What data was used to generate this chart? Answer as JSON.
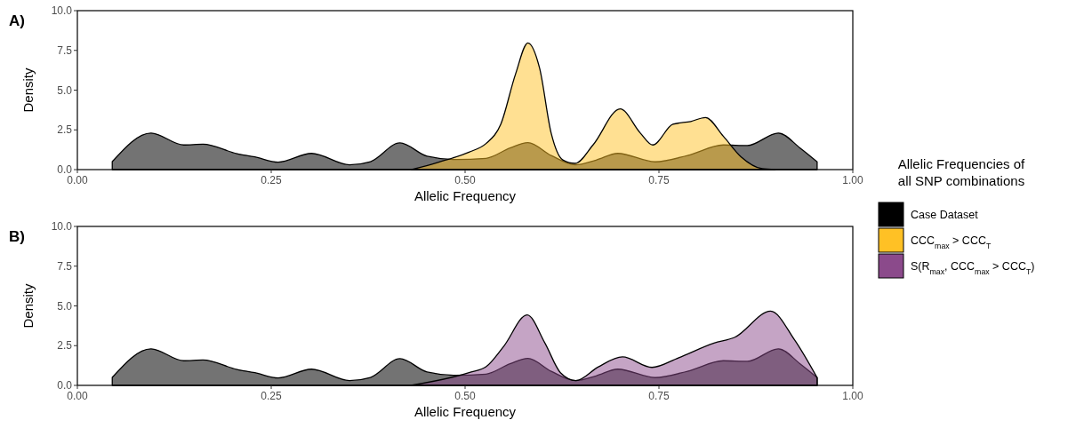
{
  "chart_data": [
    {
      "type": "area",
      "title": "A)",
      "xlabel": "Allelic Frequency",
      "ylabel": "Density",
      "legend_title": "Allelic Frequencies of all SNP combinations",
      "legend": "right",
      "xlim": [
        0,
        1
      ],
      "ylim": [
        0,
        10
      ],
      "xticks": [
        {
          "value": 0,
          "label": "0.00"
        },
        {
          "value": 0.25,
          "label": "0.25"
        },
        {
          "value": 0.5,
          "label": "0.50"
        },
        {
          "value": 0.75,
          "label": "0.75"
        },
        {
          "value": 1,
          "label": "1.00"
        }
      ],
      "yticks": [
        {
          "value": 0,
          "label": "0.0"
        },
        {
          "value": 2.5,
          "label": "2.5"
        },
        {
          "value": 5,
          "label": "5.0"
        },
        {
          "value": 7.5,
          "label": "7.5"
        },
        {
          "value": 10,
          "label": "10.0"
        }
      ],
      "series": [
        {
          "name": "Case Dataset",
          "color": "#000000",
          "x": [
            0.045,
            0.095,
            0.137,
            0.162,
            0.206,
            0.229,
            0.259,
            0.302,
            0.351,
            0.378,
            0.416,
            0.451,
            0.487,
            0.527,
            0.558,
            0.581,
            0.611,
            0.642,
            0.669,
            0.697,
            0.745,
            0.787,
            0.833,
            0.864,
            0.904,
            0.932,
            0.954
          ],
          "values": [
            0.5,
            2.3,
            1.55,
            1.6,
            1.0,
            0.8,
            0.47,
            1.02,
            0.3,
            0.5,
            1.68,
            0.84,
            0.63,
            0.71,
            1.36,
            1.7,
            0.89,
            0.3,
            0.6,
            1.02,
            0.49,
            0.89,
            1.55,
            1.51,
            2.3,
            1.36,
            0.49
          ]
        },
        {
          "name": "CCC$_{max}$ > CCC$_{T}$",
          "color": "#ffc125",
          "x": [
            0.431,
            0.466,
            0.505,
            0.527,
            0.546,
            0.565,
            0.581,
            0.596,
            0.611,
            0.626,
            0.642,
            0.665,
            0.7,
            0.726,
            0.742,
            0.768,
            0.791,
            0.81,
            0.833,
            0.856,
            0.883,
            0.9
          ],
          "values": [
            0,
            0.47,
            1.1,
            1.64,
            2.85,
            6.0,
            7.97,
            6.4,
            2.3,
            0.61,
            0.39,
            1.55,
            3.82,
            2.3,
            1.55,
            2.85,
            3.03,
            3.28,
            2.1,
            0.8,
            0.06,
            0
          ]
        }
      ]
    },
    {
      "type": "area",
      "title": "B)",
      "xlabel": "Allelic Frequency",
      "ylabel": "Density",
      "legend": "right",
      "xlim": [
        0,
        1
      ],
      "ylim": [
        0,
        10
      ],
      "xticks": [
        {
          "value": 0,
          "label": "0.00"
        },
        {
          "value": 0.25,
          "label": "0.25"
        },
        {
          "value": 0.5,
          "label": "0.50"
        },
        {
          "value": 0.75,
          "label": "0.75"
        },
        {
          "value": 1,
          "label": "1.00"
        }
      ],
      "yticks": [
        {
          "value": 0,
          "label": "0.0"
        },
        {
          "value": 2.5,
          "label": "2.5"
        },
        {
          "value": 5,
          "label": "5.0"
        },
        {
          "value": 7.5,
          "label": "7.5"
        },
        {
          "value": 10,
          "label": "10.0"
        }
      ],
      "series": [
        {
          "name": "Case Dataset",
          "color": "#000000",
          "x": [
            0.045,
            0.095,
            0.137,
            0.162,
            0.206,
            0.229,
            0.259,
            0.302,
            0.351,
            0.378,
            0.416,
            0.451,
            0.487,
            0.527,
            0.558,
            0.581,
            0.611,
            0.642,
            0.669,
            0.697,
            0.745,
            0.787,
            0.833,
            0.864,
            0.904,
            0.932,
            0.954
          ],
          "values": [
            0.5,
            2.3,
            1.55,
            1.6,
            1.0,
            0.8,
            0.47,
            1.02,
            0.3,
            0.5,
            1.68,
            0.84,
            0.63,
            0.71,
            1.36,
            1.7,
            0.89,
            0.3,
            0.6,
            1.02,
            0.49,
            0.89,
            1.55,
            1.51,
            2.3,
            1.36,
            0.49
          ]
        },
        {
          "name": "S(R$_{max}$, CCC$_{max}$ > CCC$_{T}$)",
          "color": "#8b4a8b",
          "x": [
            0.43,
            0.508,
            0.527,
            0.55,
            0.58,
            0.603,
            0.623,
            0.643,
            0.672,
            0.703,
            0.741,
            0.775,
            0.821,
            0.848,
            0.894,
            0.925,
            0.954
          ],
          "values": [
            0,
            0.84,
            1.17,
            2.47,
            4.43,
            2.66,
            0.8,
            0.3,
            1.17,
            1.79,
            1.13,
            1.73,
            2.66,
            3.03,
            4.67,
            2.85,
            0.48
          ]
        }
      ]
    }
  ]
}
